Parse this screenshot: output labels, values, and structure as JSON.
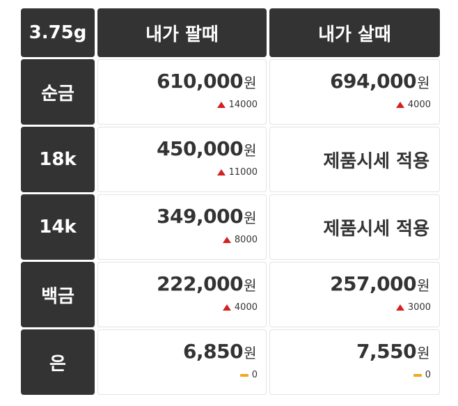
{
  "table": {
    "header": [
      "3.75g",
      "내가 팔때",
      "내가 살때"
    ],
    "rows": [
      {
        "label": "순금",
        "cells": [
          {
            "price": "610,000",
            "unit": "원",
            "change": 14000,
            "trend": "up"
          },
          {
            "price": "694,000",
            "unit": "원",
            "change": 4000,
            "trend": "up"
          }
        ]
      },
      {
        "label": "18k",
        "cells": [
          {
            "price": "450,000",
            "unit": "원",
            "change": 11000,
            "trend": "up"
          },
          {
            "text": "제품시세 적용"
          }
        ]
      },
      {
        "label": "14k",
        "cells": [
          {
            "price": "349,000",
            "unit": "원",
            "change": 8000,
            "trend": "up"
          },
          {
            "text": "제품시세 적용"
          }
        ]
      },
      {
        "label": "백금",
        "cells": [
          {
            "price": "222,000",
            "unit": "원",
            "change": 4000,
            "trend": "up"
          },
          {
            "price": "257,000",
            "unit": "원",
            "change": 3000,
            "trend": "up"
          }
        ]
      },
      {
        "label": "은",
        "cells": [
          {
            "price": "6,850",
            "unit": "원",
            "change": 0,
            "trend": "flat"
          },
          {
            "price": "7,550",
            "unit": "원",
            "change": 0,
            "trend": "flat"
          }
        ]
      }
    ]
  }
}
